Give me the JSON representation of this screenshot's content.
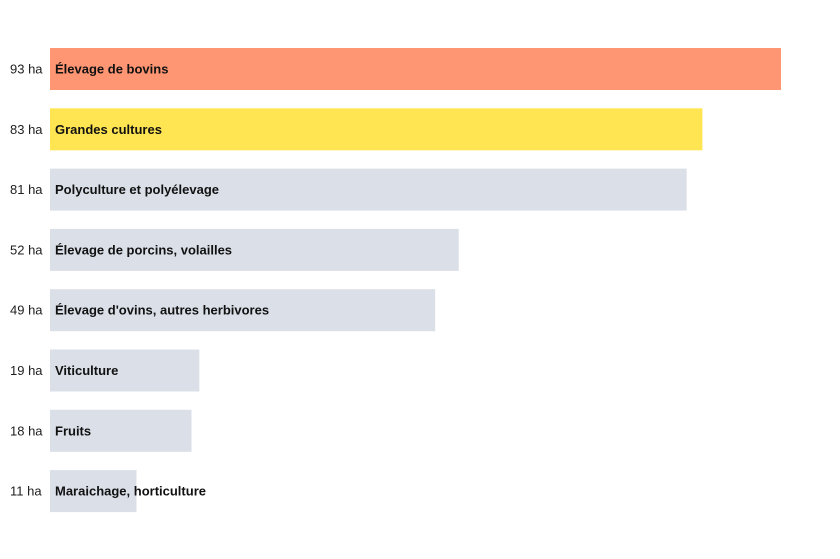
{
  "chart_data": {
    "type": "bar",
    "orientation": "horizontal",
    "unit": "ha",
    "categories": [
      "Élevage de bovins",
      "Grandes cultures",
      "Polyculture et polyélevage",
      "Élevage de porcins, volailles",
      "Élevage d'ovins, autres herbivores",
      "Viticulture",
      "Fruits",
      "Maraichage, horticulture"
    ],
    "values": [
      93,
      83,
      81,
      52,
      49,
      19,
      18,
      11
    ],
    "value_labels": [
      "93 ha",
      "83 ha",
      "81 ha",
      "52 ha",
      "49 ha",
      "19 ha",
      "18 ha",
      "11 ha"
    ],
    "colors": [
      "#ff9673",
      "#ffe552",
      "#dadfe8",
      "#dadfe8",
      "#dadfe8",
      "#dadfe8",
      "#dadfe8",
      "#dadfe8"
    ],
    "xlim": [
      0,
      93
    ],
    "grid": false,
    "legend": "none",
    "title": "",
    "xlabel": "",
    "ylabel": ""
  }
}
